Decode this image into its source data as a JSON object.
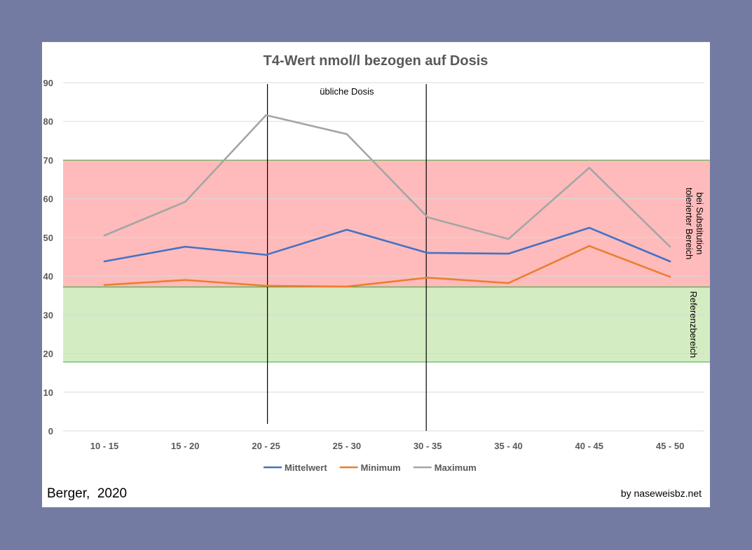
{
  "chart_data": {
    "type": "line",
    "title": "T4-Wert nmol/l bezogen auf Dosis",
    "categories": [
      "10 - 15",
      "15 - 20",
      "20 - 25",
      "25 - 30",
      "30 - 35",
      "35 - 40",
      "40 - 45",
      "45 - 50"
    ],
    "ylim": [
      0,
      90
    ],
    "yticks": [
      0,
      10,
      20,
      30,
      40,
      50,
      60,
      70,
      80,
      90
    ],
    "grid": true,
    "legend_position": "bottom",
    "series": [
      {
        "name": "Mittelwert",
        "color": "#4472c4",
        "values": [
          43.8,
          47.6,
          45.5,
          52.0,
          46.0,
          45.8,
          52.5,
          43.8
        ]
      },
      {
        "name": "Minimum",
        "color": "#ed7d31",
        "values": [
          37.7,
          39.0,
          37.5,
          37.3,
          39.6,
          38.2,
          47.8,
          39.8
        ]
      },
      {
        "name": "Maximum",
        "color": "#a5a5a5",
        "values": [
          50.5,
          59.2,
          81.6,
          76.7,
          55.2,
          49.6,
          68.0,
          47.6
        ]
      }
    ],
    "bands": [
      {
        "name": "tolerated",
        "label_line1": "bei Substitution",
        "label_line2": "tolerierter Bereich",
        "from": 37.2,
        "to": 70,
        "color": "#ff9e9e"
      },
      {
        "name": "reference",
        "label": "Referenzbereich",
        "from": 17.8,
        "to": 37.2,
        "color": "#c2e4a6"
      }
    ],
    "markers": {
      "label": "übliche Dosis",
      "between_categories": [
        "20 - 25",
        "30 - 35"
      ]
    }
  },
  "footer": {
    "author": "Berger,  2020",
    "source": "by naseweisbz.net"
  }
}
